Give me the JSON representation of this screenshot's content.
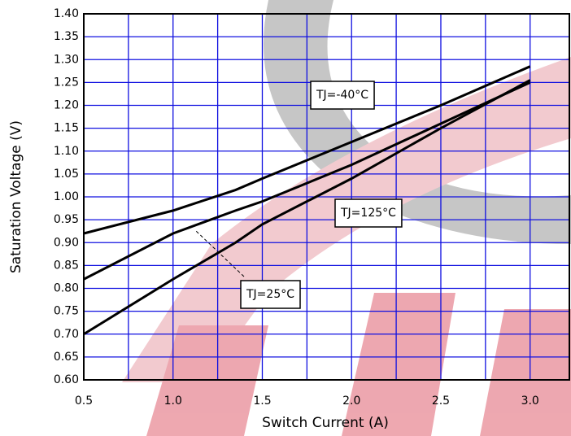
{
  "chart_data": {
    "type": "line",
    "x_label": "Switch Current (A)",
    "y_label": "Saturation Voltage (V)",
    "x": [
      0.5,
      1.0,
      1.35,
      1.5,
      2.0,
      2.5,
      3.0
    ],
    "series": [
      {
        "name": "TJ=-40°C",
        "color": "#000000",
        "values": [
          0.92,
          0.97,
          1.015,
          1.04,
          1.12,
          1.2,
          1.285
        ]
      },
      {
        "name": "TJ=25°C",
        "color": "#000000",
        "values": [
          0.82,
          0.92,
          0.97,
          0.99,
          1.07,
          1.16,
          1.25
        ]
      },
      {
        "name": "TJ=125°C",
        "color": "#000000",
        "values": [
          0.7,
          0.82,
          0.9,
          0.94,
          1.04,
          1.15,
          1.255
        ]
      }
    ],
    "xlim": [
      0.5,
      3.22
    ],
    "ylim": [
      0.6,
      1.4
    ],
    "xticks": [
      {
        "value": 0.5,
        "label": "0.5"
      },
      {
        "value": 1,
        "label": "1.0"
      },
      {
        "value": 1.5,
        "label": "1.5"
      },
      {
        "value": 2,
        "label": "2.0"
      },
      {
        "value": 2.5,
        "label": "2.5"
      },
      {
        "value": 3,
        "label": "3.0"
      }
    ],
    "x_minor_grid": [
      0.75,
      1.25,
      1.75,
      2.25,
      2.75
    ],
    "yticks": [
      {
        "value": 0.6,
        "label": "0.60"
      },
      {
        "value": 0.65,
        "label": "0.65"
      },
      {
        "value": 0.7,
        "label": "0.70"
      },
      {
        "value": 0.75,
        "label": "0.75"
      },
      {
        "value": 0.8,
        "label": "0.80"
      },
      {
        "value": 0.85,
        "label": "0.85"
      },
      {
        "value": 0.9,
        "label": "0.90"
      },
      {
        "value": 0.95,
        "label": "0.95"
      },
      {
        "value": 1,
        "label": "1.00"
      },
      {
        "value": 1.05,
        "label": "1.05"
      },
      {
        "value": 1.1,
        "label": "1.10"
      },
      {
        "value": 1.15,
        "label": "1.15"
      },
      {
        "value": 1.2,
        "label": "1.20"
      },
      {
        "value": 1.25,
        "label": "1.25"
      },
      {
        "value": 1.3,
        "label": "1.30"
      },
      {
        "value": 1.35,
        "label": "1.35"
      },
      {
        "value": 1.4,
        "label": "1.40"
      }
    ],
    "grid": true,
    "grid_color": "#1010e0"
  }
}
